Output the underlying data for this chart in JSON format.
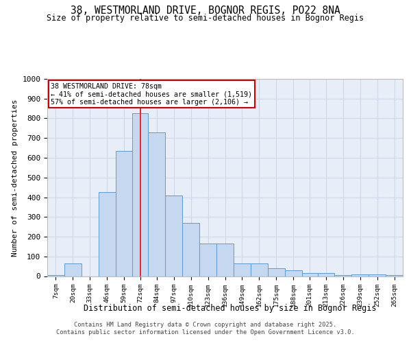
{
  "title": "38, WESTMORLAND DRIVE, BOGNOR REGIS, PO22 8NA",
  "subtitle": "Size of property relative to semi-detached houses in Bognor Regis",
  "xlabel": "Distribution of semi-detached houses by size in Bognor Regis",
  "ylabel": "Number of semi-detached properties",
  "categories": [
    "7sqm",
    "20sqm",
    "33sqm",
    "46sqm",
    "59sqm",
    "72sqm",
    "84sqm",
    "97sqm",
    "110sqm",
    "123sqm",
    "136sqm",
    "149sqm",
    "162sqm",
    "175sqm",
    "188sqm",
    "201sqm",
    "213sqm",
    "226sqm",
    "239sqm",
    "252sqm",
    "265sqm"
  ],
  "values": [
    5,
    65,
    0,
    425,
    635,
    825,
    730,
    410,
    270,
    165,
    165,
    65,
    65,
    40,
    30,
    15,
    15,
    5,
    10,
    8,
    5
  ],
  "bar_color": "#c5d8f0",
  "bar_edge_color": "#5b9bd5",
  "property_line_x": 78,
  "property_line_label": "38 WESTMORLAND DRIVE: 78sqm",
  "annotation_smaller": "← 41% of semi-detached houses are smaller (1,519)",
  "annotation_larger": "57% of semi-detached houses are larger (2,106) →",
  "annotation_box_color": "#ffffff",
  "annotation_box_edge": "#cc0000",
  "ylim": [
    0,
    1000
  ],
  "yticks": [
    0,
    100,
    200,
    300,
    400,
    500,
    600,
    700,
    800,
    900,
    1000
  ],
  "grid_color": "#d0d8e8",
  "background_color": "#e8eef8",
  "footer_line1": "Contains HM Land Registry data © Crown copyright and database right 2025.",
  "footer_line2": "Contains public sector information licensed under the Open Government Licence v3.0.",
  "bin_edges": [
    7,
    20,
    33,
    46,
    59,
    72,
    84,
    97,
    110,
    123,
    136,
    149,
    162,
    175,
    188,
    201,
    213,
    226,
    239,
    252,
    265,
    278
  ]
}
